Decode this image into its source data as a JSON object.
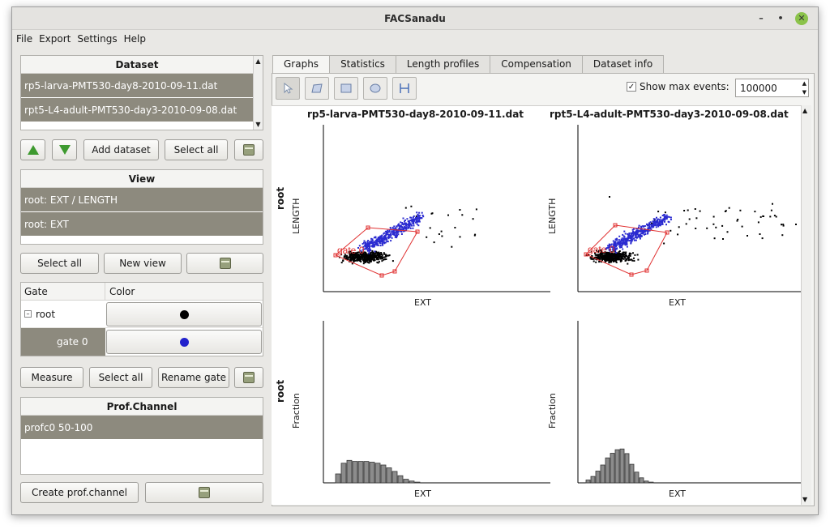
{
  "window": {
    "title": "FACSanadu"
  },
  "menu": [
    "File",
    "Export",
    "Settings",
    "Help"
  ],
  "dataset_panel": {
    "header": "Dataset",
    "items": [
      "rp5-larva-PMT530-day8-2010-09-11.dat",
      "rpt5-L4-adult-PMT530-day3-2010-09-08.dat"
    ]
  },
  "dataset_buttons": {
    "add": "Add dataset",
    "select_all": "Select all"
  },
  "view_panel": {
    "header": "View",
    "items": [
      "root: EXT / LENGTH",
      "root: EXT"
    ]
  },
  "view_buttons": {
    "select_all": "Select all",
    "new_view": "New view"
  },
  "gate_table": {
    "col_gate": "Gate",
    "col_color": "Color",
    "rows": [
      {
        "name": "root",
        "color": "#000000"
      },
      {
        "name": "gate 0",
        "color": "#2222cc"
      }
    ]
  },
  "gate_buttons": {
    "measure": "Measure",
    "select_all": "Select all",
    "rename": "Rename gate"
  },
  "prof_panel": {
    "header": "Prof.Channel",
    "items": [
      "profc0 50-100"
    ]
  },
  "prof_buttons": {
    "create": "Create prof.channel"
  },
  "tabs": [
    "Graphs",
    "Statistics",
    "Length profiles",
    "Compensation",
    "Dataset info"
  ],
  "toolbar": {
    "show_max_label": "Show max events:",
    "show_max_checked": true,
    "max_events": "100000"
  },
  "plots": {
    "col_titles": [
      "rp5-larva-PMT530-day8-2010-09-11.dat",
      "rpt5-L4-adult-PMT530-day3-2010-09-08.dat"
    ],
    "row_label": "root",
    "scatter_ylabel": "LENGTH",
    "hist_ylabel": "Fraction",
    "xlabel": "EXT",
    "gate_label": "gate 0"
  },
  "colors": {
    "selection": "#8d8a7e",
    "gate_polygon": "#e03030",
    "gate_points": "#2a2ad0",
    "root_points": "#000000",
    "hist_bar": "#8c8c8c"
  },
  "chart_data": [
    {
      "type": "scatter",
      "title": "rp5-larva-PMT530-day8-2010-09-11.dat",
      "xlabel": "EXT",
      "ylabel": "LENGTH",
      "series": [
        {
          "name": "root"
        },
        {
          "name": "gate 0"
        }
      ]
    },
    {
      "type": "scatter",
      "title": "rpt5-L4-adult-PMT530-day3-2010-09-08.dat",
      "xlabel": "EXT",
      "ylabel": "LENGTH",
      "series": [
        {
          "name": "root"
        },
        {
          "name": "gate 0"
        }
      ]
    },
    {
      "type": "bar",
      "title": "",
      "xlabel": "EXT",
      "ylabel": "Fraction",
      "values": [
        0.25,
        0.55,
        0.63,
        0.6,
        0.6,
        0.6,
        0.58,
        0.55,
        0.5,
        0.42,
        0.32,
        0.2,
        0.1,
        0.05,
        0.02
      ]
    },
    {
      "type": "bar",
      "title": "",
      "xlabel": "EXT",
      "ylabel": "Fraction",
      "values": [
        0.08,
        0.18,
        0.33,
        0.5,
        0.7,
        0.83,
        0.93,
        0.95,
        0.82,
        0.52,
        0.3,
        0.14,
        0.05,
        0.02
      ]
    }
  ]
}
